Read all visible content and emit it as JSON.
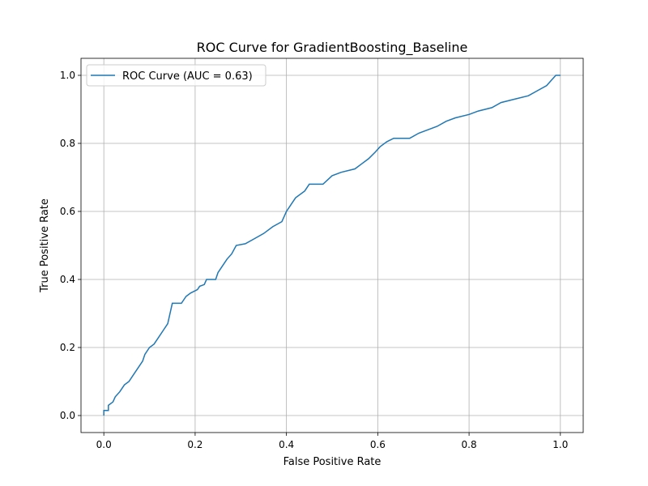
{
  "chart_data": {
    "type": "line",
    "title": "ROC Curve for GradientBoosting_Baseline",
    "x_label": "False Positive Rate",
    "y_label": "True Positive Rate",
    "xlim": [
      -0.05,
      1.05
    ],
    "ylim": [
      -0.05,
      1.05
    ],
    "xticks": [
      {
        "value": 0,
        "label": "0.0"
      },
      0.2,
      0.4,
      0.6,
      0.8,
      {
        "value": 1,
        "label": "1.0"
      }
    ],
    "yticks": [
      {
        "value": 0,
        "label": "0.0"
      },
      0.2,
      0.4,
      0.6,
      0.8,
      {
        "value": 1,
        "label": "1.0"
      }
    ],
    "grid": true,
    "legend": "upper left",
    "series": [
      {
        "name": "ROC Curve (AUC = 0.63)",
        "color": "#1f77b4",
        "x": [
          0,
          0,
          0.01,
          0.01,
          0.02,
          0.025,
          0.035,
          0.045,
          0.055,
          0.065,
          0.075,
          0.085,
          0.09,
          0.1,
          0.11,
          0.12,
          0.13,
          0.14,
          0.15,
          0.17,
          0.18,
          0.19,
          0.205,
          0.21,
          0.22,
          0.225,
          0.245,
          0.25,
          0.26,
          0.27,
          0.28,
          0.29,
          0.31,
          0.33,
          0.35,
          0.37,
          0.39,
          0.4,
          0.41,
          0.42,
          0.44,
          0.45,
          0.48,
          0.5,
          0.52,
          0.55,
          0.565,
          0.58,
          0.595,
          0.605,
          0.62,
          0.635,
          0.67,
          0.69,
          0.71,
          0.73,
          0.75,
          0.77,
          0.8,
          0.82,
          0.85,
          0.87,
          0.9,
          0.93,
          0.95,
          0.97,
          0.98,
          0.99,
          1.0
        ],
        "values": [
          0,
          0.015,
          0.015,
          0.03,
          0.04,
          0.055,
          0.07,
          0.09,
          0.1,
          0.12,
          0.14,
          0.16,
          0.18,
          0.2,
          0.21,
          0.23,
          0.25,
          0.27,
          0.33,
          0.33,
          0.35,
          0.36,
          0.37,
          0.38,
          0.385,
          0.4,
          0.4,
          0.42,
          0.44,
          0.46,
          0.475,
          0.5,
          0.505,
          0.52,
          0.535,
          0.555,
          0.57,
          0.6,
          0.62,
          0.64,
          0.66,
          0.68,
          0.68,
          0.705,
          0.715,
          0.725,
          0.74,
          0.755,
          0.775,
          0.79,
          0.805,
          0.815,
          0.815,
          0.83,
          0.84,
          0.85,
          0.865,
          0.875,
          0.885,
          0.895,
          0.905,
          0.92,
          0.93,
          0.94,
          0.955,
          0.97,
          0.985,
          1.0,
          1.0
        ]
      }
    ]
  }
}
